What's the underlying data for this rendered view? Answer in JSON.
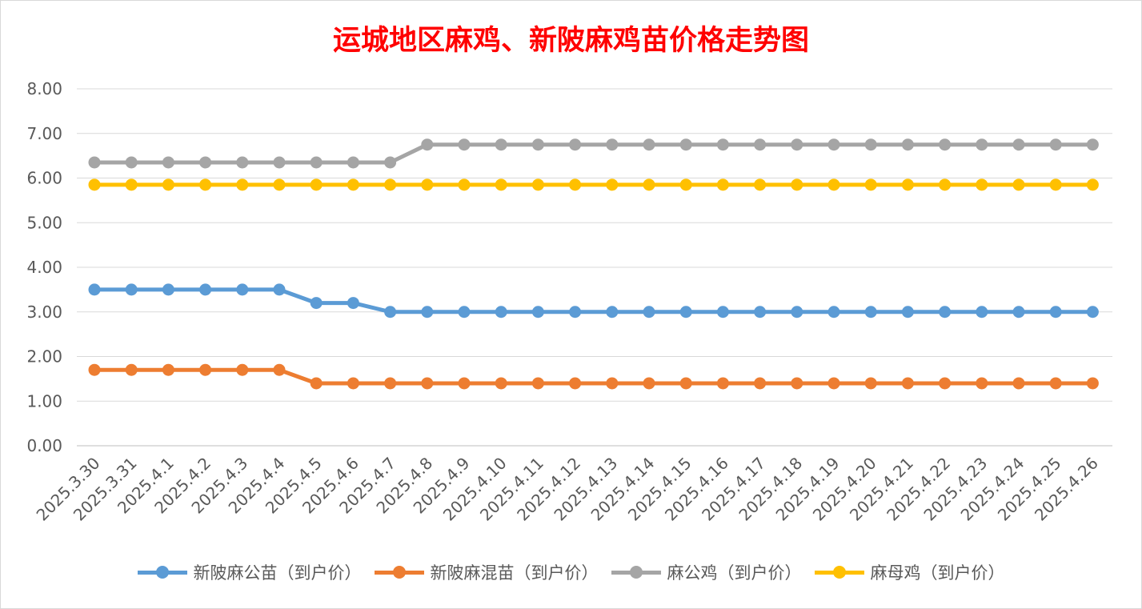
{
  "chart_data": {
    "type": "line",
    "title": "运城地区麻鸡、新陂麻鸡苗价格走势图",
    "categories": [
      "2025.3.30",
      "2025.3.31",
      "2025.4.1",
      "2025.4.2",
      "2025.4.3",
      "2025.4.4",
      "2025.4.5",
      "2025.4.6",
      "2025.4.7",
      "2025.4.8",
      "2025.4.9",
      "2025.4.10",
      "2025.4.11",
      "2025.4.12",
      "2025.4.13",
      "2025.4.14",
      "2025.4.15",
      "2025.4.16",
      "2025.4.17",
      "2025.4.18",
      "2025.4.19",
      "2025.4.20",
      "2025.4.21",
      "2025.4.22",
      "2025.4.23",
      "2025.4.24",
      "2025.4.25",
      "2025.4.26"
    ],
    "yticks": [
      "0.00",
      "1.00",
      "2.00",
      "3.00",
      "4.00",
      "5.00",
      "6.00",
      "7.00",
      "8.00"
    ],
    "ylim": [
      0,
      8
    ],
    "grid": true,
    "legend_position": "bottom",
    "series": [
      {
        "name": "新陂麻公苗（到户价）",
        "color": "#5b9bd5",
        "values": [
          3.5,
          3.5,
          3.5,
          3.5,
          3.5,
          3.5,
          3.2,
          3.2,
          3.0,
          3.0,
          3.0,
          3.0,
          3.0,
          3.0,
          3.0,
          3.0,
          3.0,
          3.0,
          3.0,
          3.0,
          3.0,
          3.0,
          3.0,
          3.0,
          3.0,
          3.0,
          3.0,
          3.0
        ]
      },
      {
        "name": "新陂麻混苗（到户价）",
        "color": "#ed7d31",
        "values": [
          1.7,
          1.7,
          1.7,
          1.7,
          1.7,
          1.7,
          1.4,
          1.4,
          1.4,
          1.4,
          1.4,
          1.4,
          1.4,
          1.4,
          1.4,
          1.4,
          1.4,
          1.4,
          1.4,
          1.4,
          1.4,
          1.4,
          1.4,
          1.4,
          1.4,
          1.4,
          1.4,
          1.4
        ]
      },
      {
        "name": "麻公鸡（到户价）",
        "color": "#a5a5a5",
        "values": [
          6.35,
          6.35,
          6.35,
          6.35,
          6.35,
          6.35,
          6.35,
          6.35,
          6.35,
          6.75,
          6.75,
          6.75,
          6.75,
          6.75,
          6.75,
          6.75,
          6.75,
          6.75,
          6.75,
          6.75,
          6.75,
          6.75,
          6.75,
          6.75,
          6.75,
          6.75,
          6.75,
          6.75
        ]
      },
      {
        "name": "麻母鸡（到户价）",
        "color": "#ffc000",
        "values": [
          5.85,
          5.85,
          5.85,
          5.85,
          5.85,
          5.85,
          5.85,
          5.85,
          5.85,
          5.85,
          5.85,
          5.85,
          5.85,
          5.85,
          5.85,
          5.85,
          5.85,
          5.85,
          5.85,
          5.85,
          5.85,
          5.85,
          5.85,
          5.85,
          5.85,
          5.85,
          5.85,
          5.85
        ]
      }
    ]
  }
}
